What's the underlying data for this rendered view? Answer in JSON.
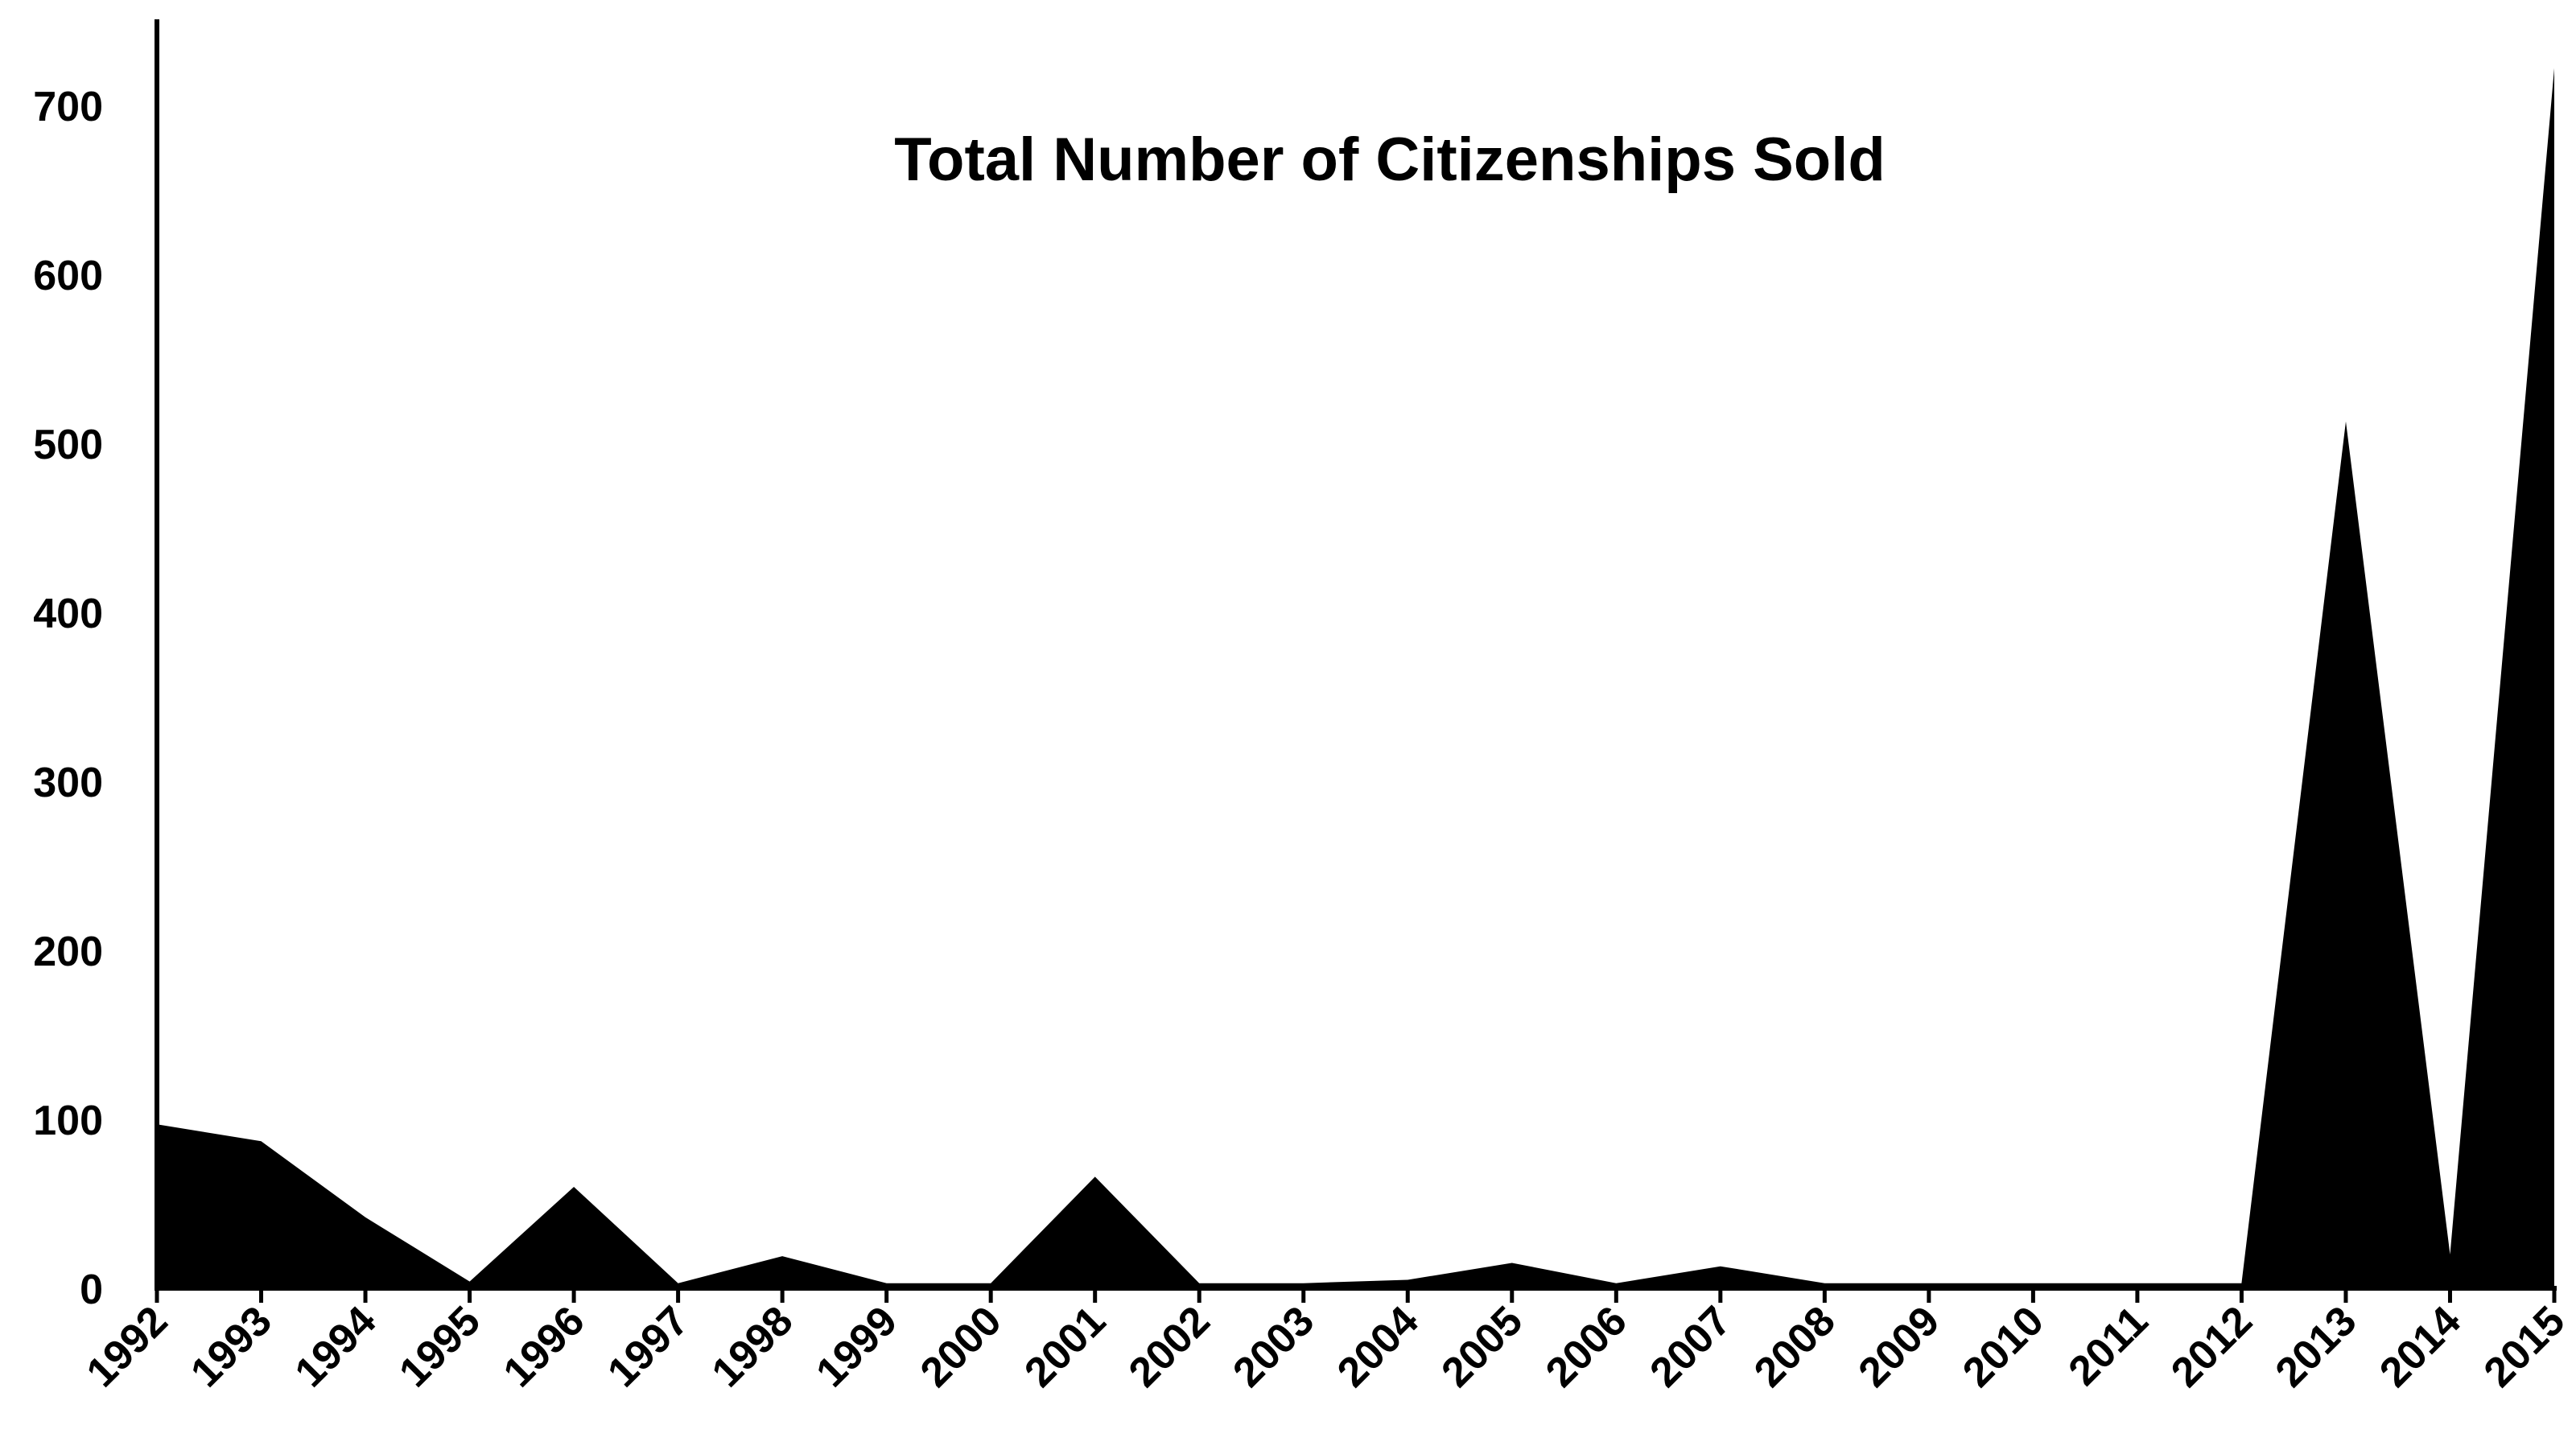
{
  "chart_data": {
    "type": "area",
    "title": "Total Number of Citizenships Sold",
    "xlabel": "",
    "ylabel": "",
    "categories": [
      "1992",
      "1993",
      "1994",
      "1995",
      "1996",
      "1997",
      "1998",
      "1999",
      "2000",
      "2001",
      "2002",
      "2003",
      "2004",
      "2005",
      "2006",
      "2007",
      "2008",
      "2009",
      "2010",
      "2011",
      "2012",
      "2013",
      "2014",
      "2015"
    ],
    "series": [
      {
        "values": [
          97,
          87,
          42,
          4,
          60,
          3,
          19,
          3,
          3,
          66,
          3,
          3,
          5,
          15,
          3,
          13,
          3,
          3,
          3,
          3,
          3,
          513,
          20,
          722
        ]
      }
    ],
    "ylim": [
      0,
      750
    ],
    "yticks": [
      0,
      100,
      200,
      300,
      400,
      500,
      600,
      700
    ],
    "grid": false,
    "legend": "none",
    "fill_color": "#000000"
  }
}
